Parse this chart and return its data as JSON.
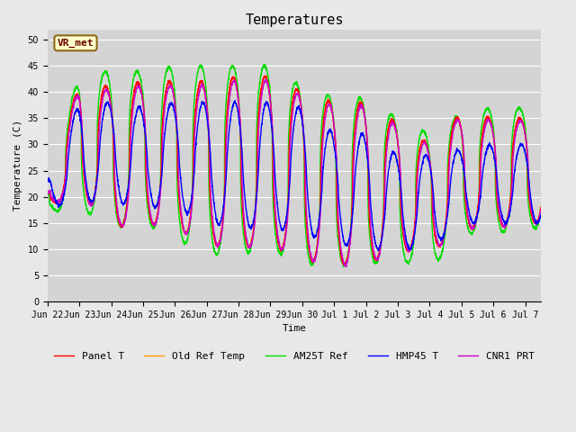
{
  "title": "Temperatures",
  "xlabel": "Time",
  "ylabel": "Temperature (C)",
  "ylim": [
    0,
    52
  ],
  "yticks": [
    0,
    5,
    10,
    15,
    20,
    25,
    30,
    35,
    40,
    45,
    50
  ],
  "background_color": "#e8e8e8",
  "plot_bg_color": "#d4d4d4",
  "grid_color": "#ffffff",
  "annotation_text": "VR_met",
  "annotation_box_color": "#ffffcc",
  "annotation_border_color": "#8b6914",
  "series_colors": {
    "Panel T": "#ff0000",
    "Old Ref Temp": "#ff9900",
    "AM25T Ref": "#00dd00",
    "HMP45 T": "#0000ff",
    "CNR1 PRT": "#cc00cc"
  },
  "n_days": 15.5,
  "tick_labels": [
    "Jun 22",
    "Jun 23",
    "Jun 24",
    "Jun 25",
    "Jun 26",
    "Jun 27",
    "Jun 28",
    "Jun 29",
    "Jun 30",
    "Jul 1",
    "Jul 2",
    "Jul 3",
    "Jul 4",
    "Jul 5",
    "Jul 6",
    "Jul 7"
  ],
  "tick_positions": [
    0,
    1,
    2,
    3,
    4,
    5,
    6,
    7,
    8,
    9,
    10,
    11,
    12,
    13,
    14,
    15
  ],
  "line_width": 1.0,
  "font_family": "monospace",
  "font_size_title": 11,
  "font_size_ticks": 7,
  "font_size_label": 8,
  "font_size_legend": 8,
  "peak_maxes": [
    21,
    42,
    41,
    42,
    42,
    42,
    43,
    43,
    40,
    38,
    38,
    34,
    30,
    36,
    35,
    35
  ],
  "peak_mins": [
    18,
    21,
    14,
    15,
    14,
    11,
    10,
    11,
    8,
    7,
    7,
    10,
    9,
    14,
    14,
    15
  ],
  "am25t_peak_maxes": [
    21,
    44,
    44,
    44,
    45,
    45,
    45,
    45,
    41,
    39,
    39,
    35,
    32,
    36,
    37,
    37
  ],
  "am25t_peak_mins": [
    17,
    18,
    14,
    15,
    12,
    9,
    9,
    10,
    7,
    7,
    7,
    8,
    6,
    13,
    13,
    14
  ],
  "hmp45_peak_maxes": [
    24,
    38,
    38,
    37,
    38,
    38,
    38,
    38,
    37,
    32,
    32,
    28,
    28,
    29,
    30,
    30
  ],
  "hmp45_peak_mins": [
    18,
    19,
    19,
    18,
    18,
    15,
    14,
    14,
    13,
    11,
    10,
    10,
    10,
    15,
    15,
    15
  ]
}
